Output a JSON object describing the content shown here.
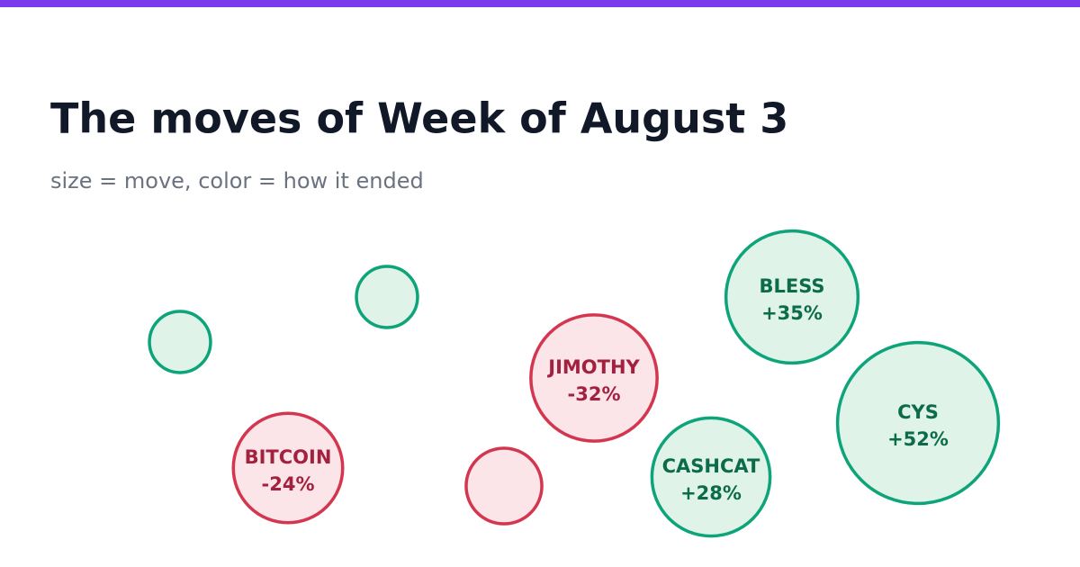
{
  "chart_data": {
    "type": "bubble",
    "title": "The moves of Week of August 3",
    "subtitle": "size = move, color = how it ended",
    "categories": [
      null,
      null,
      "BITCOIN",
      null,
      "JIMOTHY",
      "CASHCAT",
      "BLESS",
      "CYS"
    ],
    "values": [
      7.5,
      7.5,
      -24,
      -11.5,
      -32,
      28,
      35,
      52
    ],
    "value_labels": [
      null,
      null,
      "-24%",
      null,
      "-32%",
      "+28%",
      "+35%",
      "+52%"
    ],
    "colors": {
      "up": {
        "fill": "#dff3e9",
        "stroke": "#0ea47a",
        "text": "#0b6b4a"
      },
      "down": {
        "fill": "#fbe5e8",
        "stroke": "#d4354f",
        "text": "#a3213f"
      }
    },
    "accent_color": "#7c3aed"
  }
}
